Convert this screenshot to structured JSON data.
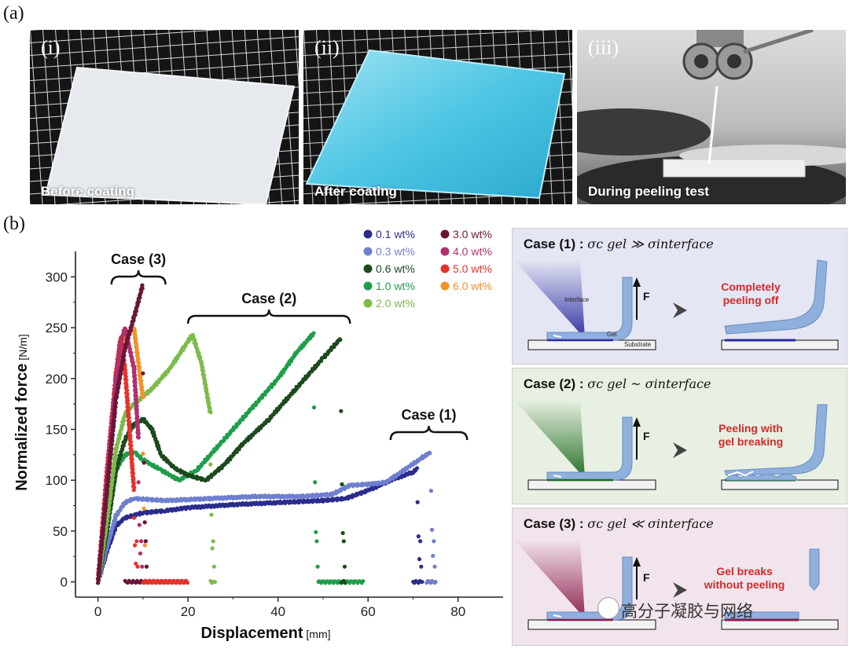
{
  "panels": {
    "a": "(a)",
    "b": "(b)"
  },
  "photos": [
    {
      "roman": "(i)",
      "caption": "Before coating"
    },
    {
      "roman": "(ii)",
      "caption": "After coating"
    },
    {
      "roman": "(iii)",
      "caption": "During peeling test"
    }
  ],
  "chart_data": {
    "type": "scatter",
    "xlabel": "Displacement",
    "xlabel_unit": "[mm]",
    "ylabel": "Normalized force",
    "ylabel_unit": "[N/m]",
    "xlim": [
      -5,
      90
    ],
    "ylim": [
      -15,
      325
    ],
    "x_ticks": [
      0,
      20,
      40,
      60,
      80
    ],
    "y_ticks": [
      0,
      50,
      100,
      150,
      200,
      250,
      300
    ],
    "legend": [
      {
        "name": "0.1 wt%",
        "color": "#2b2d8c"
      },
      {
        "name": "0.3 wt%",
        "color": "#6f7fd0"
      },
      {
        "name": "0.6 wt%",
        "color": "#1c4a1c"
      },
      {
        "name": "1.0 wt%",
        "color": "#1f9e4a"
      },
      {
        "name": "2.0 wt%",
        "color": "#7dbb4a"
      },
      {
        "name": "3.0 wt%",
        "color": "#6b1638"
      },
      {
        "name": "4.0 wt%",
        "color": "#b0306e"
      },
      {
        "name": "5.0 wt%",
        "color": "#e8312a"
      },
      {
        "name": "6.0 wt%",
        "color": "#f39228"
      }
    ],
    "annotations": [
      {
        "label": "Case (3)",
        "x_range": [
          3,
          15
        ]
      },
      {
        "label": "Case (2)",
        "x_range": [
          20,
          56
        ]
      },
      {
        "label": "Case (1)",
        "x_range": [
          65,
          82
        ]
      }
    ],
    "series": [
      {
        "name": "0.1 wt%",
        "points": [
          [
            0,
            0
          ],
          [
            2,
            30
          ],
          [
            4,
            55
          ],
          [
            6,
            63
          ],
          [
            10,
            68
          ],
          [
            15,
            70
          ],
          [
            20,
            73
          ],
          [
            30,
            76
          ],
          [
            40,
            78
          ],
          [
            50,
            80
          ],
          [
            55,
            82
          ],
          [
            60,
            90
          ],
          [
            65,
            100
          ],
          [
            70,
            108
          ],
          [
            71,
            112
          ]
        ]
      },
      {
        "name": "0.3 wt%",
        "points": [
          [
            0,
            0
          ],
          [
            2,
            35
          ],
          [
            4,
            65
          ],
          [
            6,
            78
          ],
          [
            8,
            82
          ],
          [
            15,
            80
          ],
          [
            25,
            82
          ],
          [
            35,
            84
          ],
          [
            45,
            84
          ],
          [
            52,
            86
          ],
          [
            56,
            95
          ],
          [
            60,
            96
          ],
          [
            64,
            98
          ],
          [
            68,
            110
          ],
          [
            72,
            122
          ],
          [
            74,
            128
          ]
        ]
      },
      {
        "name": "0.6 wt%",
        "points": [
          [
            0,
            0
          ],
          [
            2,
            50
          ],
          [
            4,
            110
          ],
          [
            6,
            140
          ],
          [
            8,
            155
          ],
          [
            10,
            160
          ],
          [
            12,
            150
          ],
          [
            14,
            125
          ],
          [
            17,
            112
          ],
          [
            20,
            105
          ],
          [
            24,
            100
          ],
          [
            28,
            115
          ],
          [
            32,
            135
          ],
          [
            38,
            160
          ],
          [
            44,
            190
          ],
          [
            50,
            220
          ],
          [
            54,
            240
          ]
        ]
      },
      {
        "name": "1.0 wt%",
        "points": [
          [
            0,
            0
          ],
          [
            2,
            55
          ],
          [
            4,
            110
          ],
          [
            6,
            125
          ],
          [
            8,
            128
          ],
          [
            10,
            120
          ],
          [
            14,
            110
          ],
          [
            18,
            100
          ],
          [
            22,
            110
          ],
          [
            28,
            140
          ],
          [
            34,
            170
          ],
          [
            40,
            200
          ],
          [
            44,
            225
          ],
          [
            48,
            245
          ]
        ]
      },
      {
        "name": "2.0 wt%",
        "points": [
          [
            0,
            0
          ],
          [
            2,
            60
          ],
          [
            4,
            130
          ],
          [
            6,
            165
          ],
          [
            8,
            175
          ],
          [
            12,
            190
          ],
          [
            16,
            210
          ],
          [
            19,
            230
          ],
          [
            21,
            243
          ],
          [
            23,
            215
          ],
          [
            25,
            165
          ]
        ]
      },
      {
        "name": "3.0 wt%",
        "points": [
          [
            0,
            0
          ],
          [
            2,
            90
          ],
          [
            4,
            180
          ],
          [
            6,
            230
          ],
          [
            8,
            260
          ],
          [
            10,
            293
          ]
        ]
      },
      {
        "name": "4.0 wt%",
        "points": [
          [
            0,
            0
          ],
          [
            2,
            100
          ],
          [
            4,
            200
          ],
          [
            5,
            235
          ],
          [
            6,
            250
          ],
          [
            8,
            210
          ],
          [
            9,
            140
          ]
        ]
      },
      {
        "name": "5.0 wt%",
        "points": [
          [
            0,
            0
          ],
          [
            2,
            110
          ],
          [
            4,
            205
          ],
          [
            5,
            240
          ],
          [
            6,
            210
          ],
          [
            8,
            90
          ]
        ]
      },
      {
        "name": "6.0 wt%",
        "points": [
          [
            0,
            0
          ],
          [
            2,
            100
          ],
          [
            4,
            190
          ],
          [
            6,
            240
          ],
          [
            8,
            250
          ],
          [
            10,
            180
          ]
        ]
      }
    ]
  },
  "cases": [
    {
      "title": "Case (1) :",
      "relation": "σc gel ≫ σinterface",
      "result": [
        "Completely",
        "peeling off"
      ],
      "labels": {
        "interface": "Interface",
        "gel": "Gel",
        "substrate": "Substrate",
        "force": "F"
      },
      "accent": "#2a2aa0",
      "bg": "#e4e6f4"
    },
    {
      "title": "Case (2) :",
      "relation": "σc gel ~ σinterface",
      "result": [
        "Peeling with",
        "gel breaking"
      ],
      "labels": {
        "force": "F"
      },
      "accent": "#1d6a1d",
      "bg": "#e7f0e2"
    },
    {
      "title": "Case (3) :",
      "relation": "σc gel ≪ σinterface",
      "result": [
        "Gel breaks",
        "without peeling"
      ],
      "labels": {
        "force": "F"
      },
      "accent": "#8a1a4a",
      "bg": "#f2e4ec"
    }
  ],
  "watermark": "高分子凝胶与网络"
}
